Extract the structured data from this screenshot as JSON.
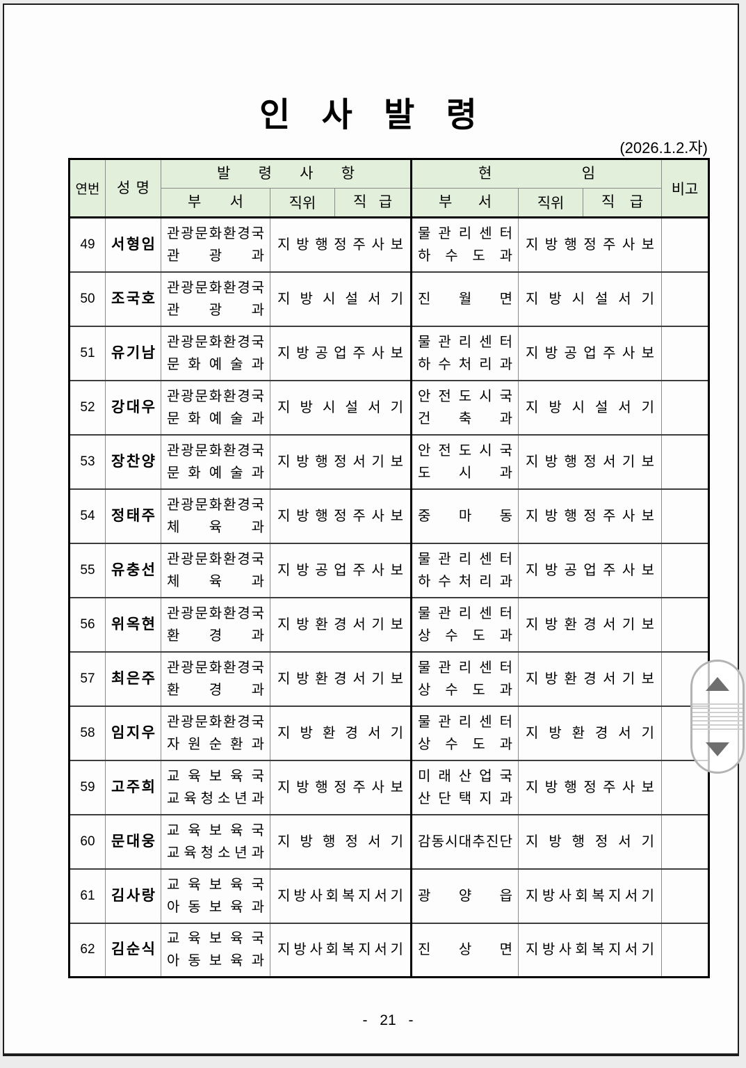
{
  "page": {
    "title": "인 사 발 령",
    "date": "(2026.1.2.자)",
    "page_number": "- 21 -"
  },
  "table": {
    "headers": {
      "no": "연번",
      "name": "성명",
      "appointment_group": "발령사항",
      "current_group": "현임",
      "dept": "부서",
      "position": "직위",
      "grade": "직급",
      "note": "비고"
    },
    "rows": [
      {
        "no": "49",
        "name": "서형임",
        "appt_dept1": "관광문화환경국",
        "appt_dept2": "관광과",
        "appt_grade": "지방행정주사보",
        "cur_dept1": "물관리센터",
        "cur_dept2": "하수도과",
        "cur_grade": "지방행정주사보",
        "note": ""
      },
      {
        "no": "50",
        "name": "조국호",
        "appt_dept1": "관광문화환경국",
        "appt_dept2": "관광과",
        "appt_grade": "지방시설서기",
        "cur_dept1": "진월면",
        "cur_dept2": "",
        "cur_grade": "지방시설서기",
        "note": ""
      },
      {
        "no": "51",
        "name": "유기남",
        "appt_dept1": "관광문화환경국",
        "appt_dept2": "문화예술과",
        "appt_grade": "지방공업주사보",
        "cur_dept1": "물관리센터",
        "cur_dept2": "하수처리과",
        "cur_grade": "지방공업주사보",
        "note": ""
      },
      {
        "no": "52",
        "name": "강대우",
        "appt_dept1": "관광문화환경국",
        "appt_dept2": "문화예술과",
        "appt_grade": "지방시설서기",
        "cur_dept1": "안전도시국",
        "cur_dept2": "건축과",
        "cur_grade": "지방시설서기",
        "note": ""
      },
      {
        "no": "53",
        "name": "장찬양",
        "appt_dept1": "관광문화환경국",
        "appt_dept2": "문화예술과",
        "appt_grade": "지방행정서기보",
        "cur_dept1": "안전도시국",
        "cur_dept2": "도시과",
        "cur_grade": "지방행정서기보",
        "note": ""
      },
      {
        "no": "54",
        "name": "정태주",
        "appt_dept1": "관광문화환경국",
        "appt_dept2": "체육과",
        "appt_grade": "지방행정주사보",
        "cur_dept1": "중마동",
        "cur_dept2": "",
        "cur_grade": "지방행정주사보",
        "note": ""
      },
      {
        "no": "55",
        "name": "유충선",
        "appt_dept1": "관광문화환경국",
        "appt_dept2": "체육과",
        "appt_grade": "지방공업주사보",
        "cur_dept1": "물관리센터",
        "cur_dept2": "하수처리과",
        "cur_grade": "지방공업주사보",
        "note": ""
      },
      {
        "no": "56",
        "name": "위옥현",
        "appt_dept1": "관광문화환경국",
        "appt_dept2": "환경과",
        "appt_grade": "지방환경서기보",
        "cur_dept1": "물관리센터",
        "cur_dept2": "상수도과",
        "cur_grade": "지방환경서기보",
        "note": ""
      },
      {
        "no": "57",
        "name": "최은주",
        "appt_dept1": "관광문화환경국",
        "appt_dept2": "환경과",
        "appt_grade": "지방환경서기보",
        "cur_dept1": "물관리센터",
        "cur_dept2": "상수도과",
        "cur_grade": "지방환경서기보",
        "note": ""
      },
      {
        "no": "58",
        "name": "임지우",
        "appt_dept1": "관광문화환경국",
        "appt_dept2": "자원순환과",
        "appt_grade": "지방환경서기",
        "cur_dept1": "물관리센터",
        "cur_dept2": "상수도과",
        "cur_grade": "지방환경서기",
        "note": ""
      },
      {
        "no": "59",
        "name": "고주희",
        "appt_dept1": "교육보육국",
        "appt_dept2": "교육청소년과",
        "appt_grade": "지방행정주사보",
        "cur_dept1": "미래산업국",
        "cur_dept2": "산단택지과",
        "cur_grade": "지방행정주사보",
        "note": ""
      },
      {
        "no": "60",
        "name": "문대웅",
        "appt_dept1": "교육보육국",
        "appt_dept2": "교육청소년과",
        "appt_grade": "지방행정서기",
        "cur_dept1": "감동시대추진단",
        "cur_dept2": "",
        "cur_grade": "지방행정서기",
        "note": ""
      },
      {
        "no": "61",
        "name": "김사랑",
        "appt_dept1": "교육보육국",
        "appt_dept2": "아동보육과",
        "appt_grade": "지방사회복지서기",
        "cur_dept1": "광양읍",
        "cur_dept2": "",
        "cur_grade": "지방사회복지서기",
        "note": ""
      },
      {
        "no": "62",
        "name": "김순식",
        "appt_dept1": "교육보육국",
        "appt_dept2": "아동보육과",
        "appt_grade": "지방사회복지서기",
        "cur_dept1": "진상면",
        "cur_dept2": "",
        "cur_grade": "지방사회복지서기",
        "note": ""
      }
    ]
  },
  "scroll_widget": {
    "icons": [
      "scroll-up-arrow-icon",
      "scroll-grip-icon",
      "scroll-down-arrow-icon"
    ]
  },
  "colors": {
    "header_bg": "#e2efda",
    "page_bg": "#fdfdfd",
    "outside_bg": "#ececec",
    "border_gray": "#8a8a8a",
    "row_divider": "#3d3d3d",
    "widget_arrow": "#6e6e6e",
    "text": "#000000"
  }
}
